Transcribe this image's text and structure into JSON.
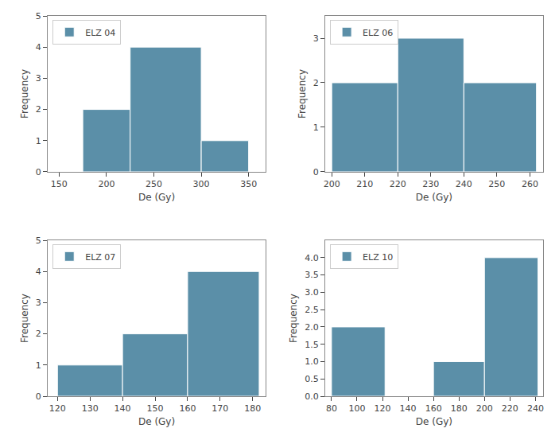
{
  "chart_data": [
    {
      "type": "histogram",
      "xlabel": "De (Gy)",
      "ylabel": "Frequency",
      "bins": [
        175,
        225,
        300,
        350
      ],
      "series": [
        {
          "name": "ELZ 04",
          "color": "#5b8fa8",
          "values": [
            2,
            4,
            1
          ]
        }
      ],
      "xlim": [
        138,
        368
      ],
      "xticks": [
        150,
        200,
        250,
        300,
        350
      ],
      "ylim": [
        0,
        5
      ],
      "yticks": [
        0,
        1,
        2,
        3,
        4,
        5
      ],
      "grid": false,
      "legend": "upper left"
    },
    {
      "type": "histogram",
      "xlabel": "De (Gy)",
      "ylabel": "Frequency",
      "bins": [
        200,
        220,
        240,
        262
      ],
      "series": [
        {
          "name": "ELZ 06",
          "color": "#5b8fa8",
          "values": [
            2,
            3,
            2
          ]
        }
      ],
      "xlim": [
        198,
        264
      ],
      "xticks": [
        200,
        210,
        220,
        230,
        240,
        250,
        260
      ],
      "ylim": [
        0,
        3.5
      ],
      "yticks": [
        0,
        1,
        2,
        3
      ],
      "grid": false,
      "legend": "upper left"
    },
    {
      "type": "histogram",
      "xlabel": "De (Gy)",
      "ylabel": "Frequency",
      "bins": [
        120,
        140,
        160,
        182
      ],
      "series": [
        {
          "name": "ELZ 07",
          "color": "#5b8fa8",
          "values": [
            1,
            2,
            4
          ]
        }
      ],
      "xlim": [
        117,
        184
      ],
      "xticks": [
        120,
        130,
        140,
        150,
        160,
        170,
        180
      ],
      "ylim": [
        0,
        5
      ],
      "yticks": [
        0,
        1,
        2,
        3,
        4,
        5
      ],
      "grid": false,
      "legend": "upper left"
    },
    {
      "type": "histogram",
      "xlabel": "De (Gy)",
      "ylabel": "Frequency",
      "bins": [
        80,
        122,
        160,
        200,
        242
      ],
      "series": [
        {
          "name": "ELZ 10",
          "color": "#5b8fa8",
          "values": [
            2,
            0,
            1,
            4
          ]
        }
      ],
      "xlim": [
        75,
        246
      ],
      "xticks": [
        80,
        100,
        120,
        140,
        160,
        180,
        200,
        220,
        240
      ],
      "ylim": [
        0,
        4.5
      ],
      "yticks": [
        {
          "value": 0,
          "label": "0.0"
        },
        0.5,
        {
          "value": 1,
          "label": "1.0"
        },
        1.5,
        {
          "value": 2,
          "label": "2.0"
        },
        2.5,
        {
          "value": 3,
          "label": "3.0"
        },
        3.5,
        {
          "value": 4,
          "label": "4.0"
        }
      ],
      "grid": false,
      "legend": "upper left"
    }
  ]
}
